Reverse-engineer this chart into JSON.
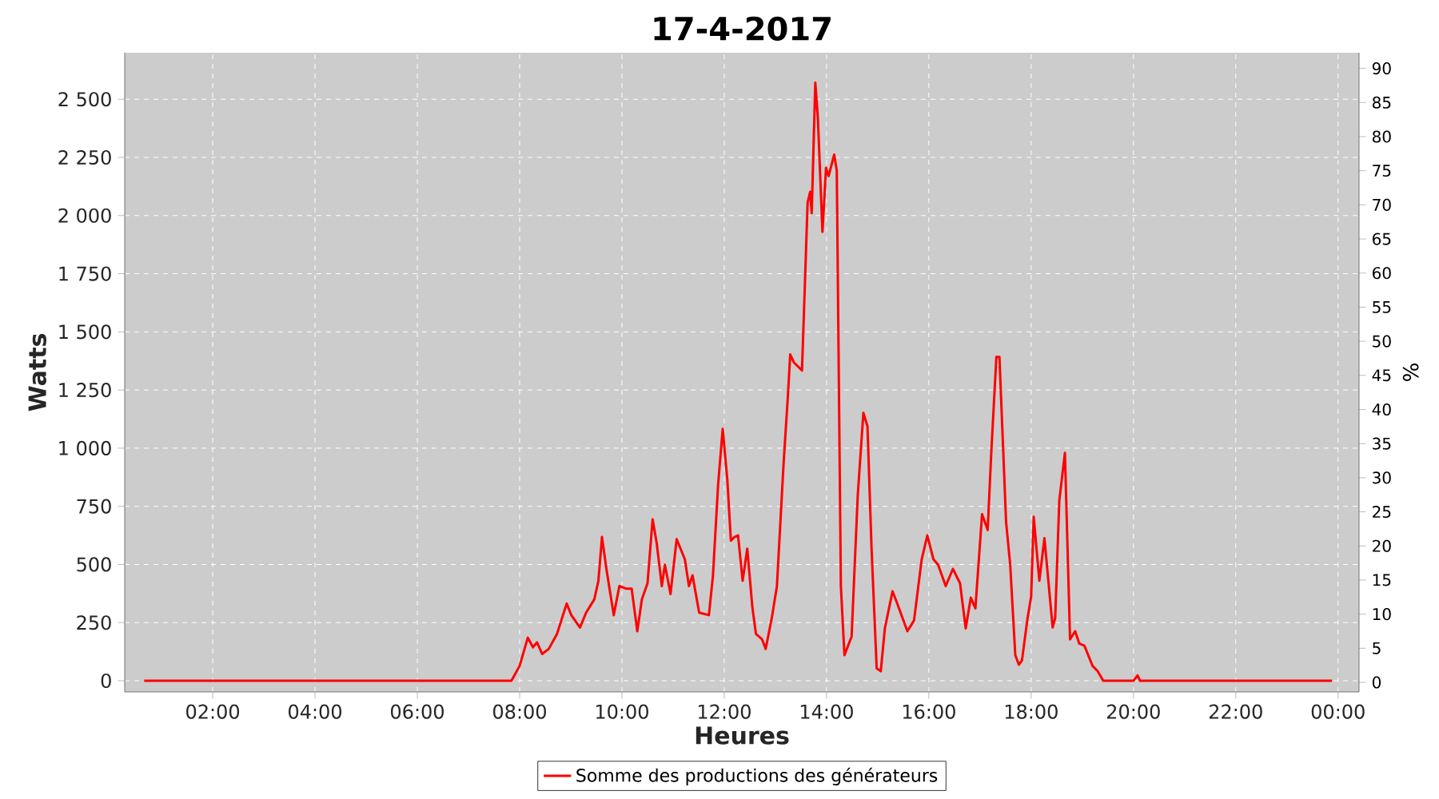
{
  "chart_data": {
    "type": "line",
    "title": "17-4-2017",
    "xlabel": "Heures",
    "ylabel": "Watts",
    "y2label": "%",
    "xlim": [
      0.28,
      24.41
    ],
    "ylim": [
      -48,
      2700
    ],
    "y2lim": [
      -1.4,
      92.3
    ],
    "xticks": [
      {
        "value": 2,
        "label": "02:00"
      },
      {
        "value": 4,
        "label": "04:00"
      },
      {
        "value": 6,
        "label": "06:00"
      },
      {
        "value": 8,
        "label": "08:00"
      },
      {
        "value": 10,
        "label": "10:00"
      },
      {
        "value": 12,
        "label": "12:00"
      },
      {
        "value": 14,
        "label": "14:00"
      },
      {
        "value": 16,
        "label": "16:00"
      },
      {
        "value": 18,
        "label": "18:00"
      },
      {
        "value": 20,
        "label": "20:00"
      },
      {
        "value": 22,
        "label": "22:00"
      },
      {
        "value": 24,
        "label": "00:00"
      }
    ],
    "yticks": [
      {
        "value": 0,
        "label": "0"
      },
      {
        "value": 250,
        "label": "250"
      },
      {
        "value": 500,
        "label": "500"
      },
      {
        "value": 750,
        "label": "750"
      },
      {
        "value": 1000,
        "label": "1 000"
      },
      {
        "value": 1250,
        "label": "1 250"
      },
      {
        "value": 1500,
        "label": "1 500"
      },
      {
        "value": 1750,
        "label": "1 750"
      },
      {
        "value": 2000,
        "label": "2 000"
      },
      {
        "value": 2250,
        "label": "2 250"
      },
      {
        "value": 2500,
        "label": "2 500"
      }
    ],
    "y2ticks": [
      {
        "value": 0,
        "label": "0"
      },
      {
        "value": 5,
        "label": "5"
      },
      {
        "value": 10,
        "label": "10"
      },
      {
        "value": 15,
        "label": "15"
      },
      {
        "value": 20,
        "label": "20"
      },
      {
        "value": 25,
        "label": "25"
      },
      {
        "value": 30,
        "label": "30"
      },
      {
        "value": 35,
        "label": "35"
      },
      {
        "value": 40,
        "label": "40"
      },
      {
        "value": 45,
        "label": "45"
      },
      {
        "value": 50,
        "label": "50"
      },
      {
        "value": 55,
        "label": "55"
      },
      {
        "value": 60,
        "label": "60"
      },
      {
        "value": 65,
        "label": "65"
      },
      {
        "value": 70,
        "label": "70"
      },
      {
        "value": 75,
        "label": "75"
      },
      {
        "value": 80,
        "label": "80"
      },
      {
        "value": 85,
        "label": "85"
      },
      {
        "value": 90,
        "label": "90"
      }
    ],
    "grid": true,
    "legend": "bottom",
    "line_style": "solid",
    "series": [
      {
        "name": "Somme des productions des  générateurs",
        "color": "#ff0000",
        "x": [
          0.66,
          3.0,
          5.5,
          7.6,
          7.84,
          8.0,
          8.16,
          8.26,
          8.34,
          8.44,
          8.57,
          8.73,
          8.92,
          9.01,
          9.18,
          9.3,
          9.46,
          9.54,
          9.61,
          9.7,
          9.84,
          9.95,
          10.08,
          10.19,
          10.3,
          10.39,
          10.5,
          10.6,
          10.68,
          10.78,
          10.84,
          10.95,
          11.07,
          11.23,
          11.31,
          11.38,
          11.51,
          11.7,
          11.78,
          11.88,
          11.97,
          12.06,
          12.13,
          12.2,
          12.27,
          12.36,
          12.45,
          12.55,
          12.62,
          12.74,
          12.81,
          12.93,
          13.03,
          13.16,
          13.24,
          13.29,
          13.36,
          13.52,
          13.63,
          13.68,
          13.71,
          13.78,
          13.83,
          13.92,
          13.99,
          14.04,
          14.15,
          14.2,
          14.28,
          14.35,
          14.49,
          14.61,
          14.72,
          14.8,
          14.88,
          14.98,
          15.06,
          15.14,
          15.29,
          15.37,
          15.58,
          15.71,
          15.86,
          15.97,
          16.09,
          16.18,
          16.33,
          16.47,
          16.61,
          16.72,
          16.82,
          16.91,
          17.04,
          17.15,
          17.22,
          17.32,
          17.38,
          17.51,
          17.59,
          17.69,
          17.76,
          17.82,
          17.93,
          18.0,
          18.05,
          18.16,
          18.26,
          18.42,
          18.47,
          18.55,
          18.66,
          18.76,
          18.86,
          18.94,
          19.04,
          19.2,
          19.3,
          19.41,
          20.0,
          20.08,
          20.13,
          22.0,
          23.88
        ],
        "values": [
          0,
          0,
          0,
          0,
          0,
          64,
          185,
          144,
          165,
          115,
          137,
          201,
          332,
          282,
          229,
          293,
          350,
          430,
          618,
          476,
          282,
          407,
          396,
          396,
          213,
          350,
          419,
          694,
          591,
          407,
          499,
          373,
          609,
          522,
          407,
          453,
          293,
          282,
          453,
          843,
          1083,
          865,
          602,
          618,
          625,
          430,
          568,
          316,
          201,
          178,
          137,
          270,
          407,
          934,
          1209,
          1403,
          1369,
          1334,
          2056,
          2102,
          2010,
          2571,
          2422,
          1930,
          2205,
          2170,
          2262,
          2193,
          407,
          110,
          190,
          797,
          1152,
          1094,
          568,
          53,
          41,
          225,
          385,
          339,
          213,
          259,
          522,
          625,
          522,
          499,
          407,
          481,
          419,
          225,
          357,
          311,
          716,
          648,
          980,
          1392,
          1392,
          682,
          499,
          110,
          69,
          87,
          270,
          362,
          705,
          430,
          613,
          229,
          270,
          774,
          980,
          178,
          213,
          160,
          151,
          64,
          41,
          0,
          0,
          23,
          0,
          0,
          0
        ]
      }
    ]
  }
}
